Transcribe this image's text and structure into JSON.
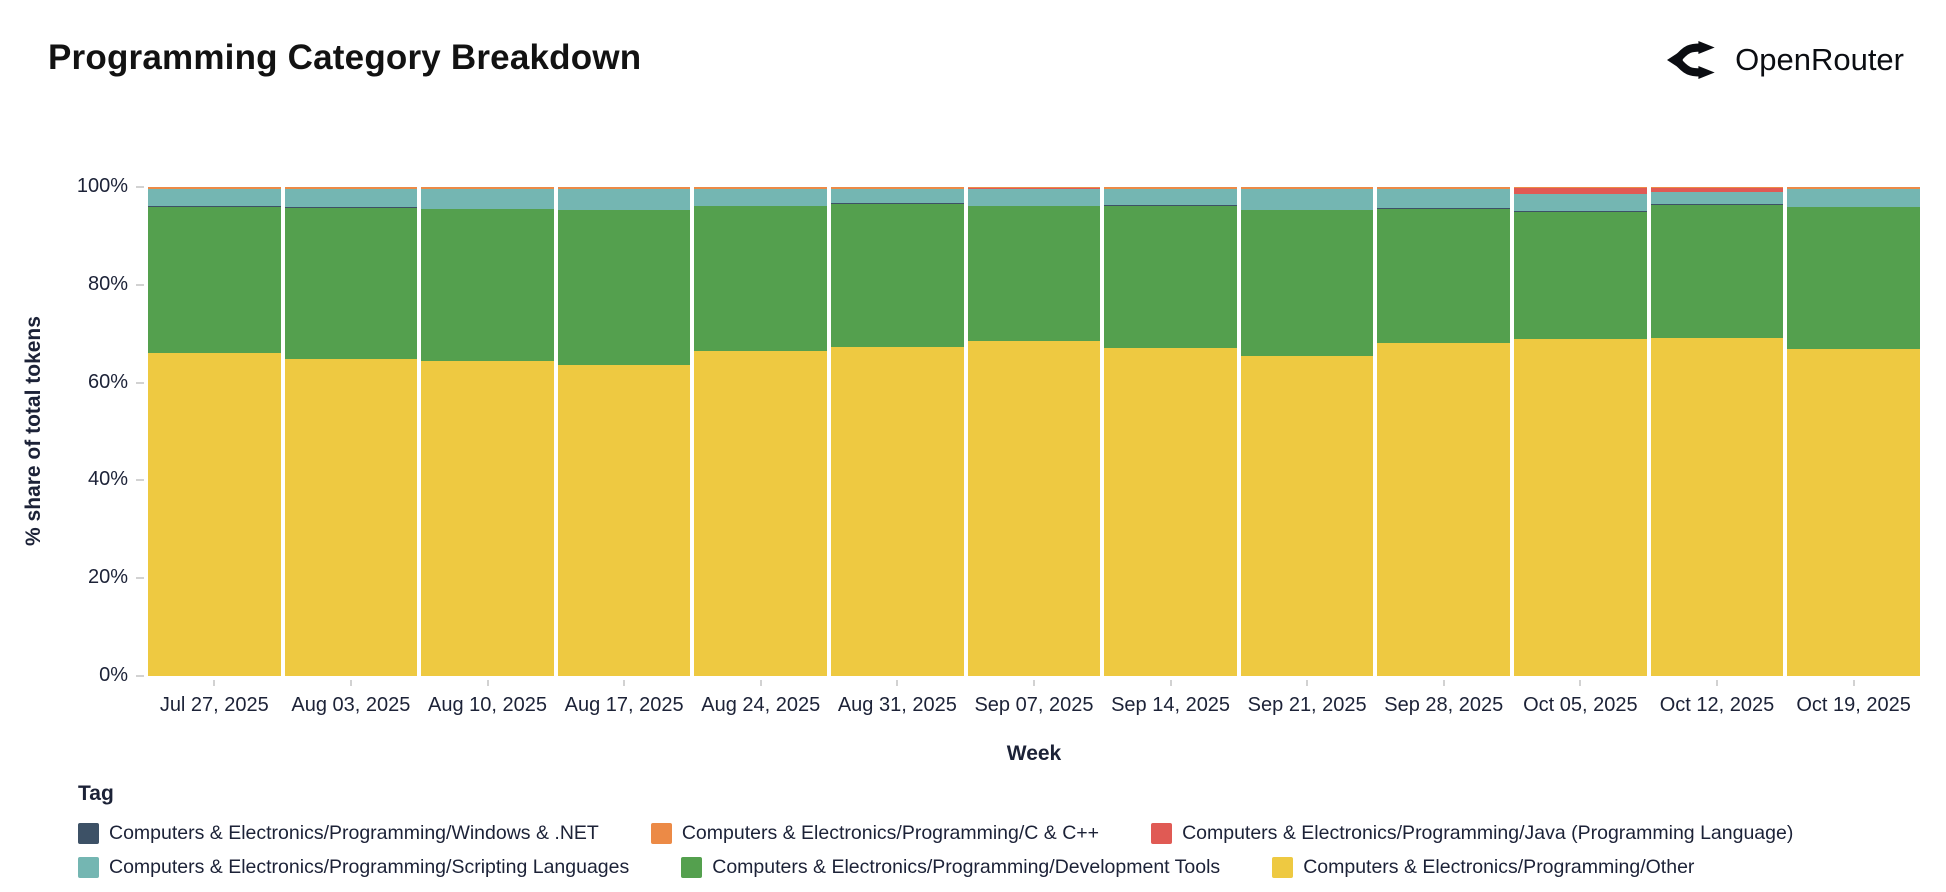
{
  "header": {
    "title": "Programming Category Breakdown",
    "brand": "OpenRouter"
  },
  "chart_data": {
    "type": "bar",
    "stacked": true,
    "unit": "percent",
    "title": "Programming Category Breakdown",
    "xlabel": "Week",
    "ylabel": "% share of total tokens",
    "ylim": [
      0,
      100
    ],
    "yticks": [
      "0%",
      "20%",
      "40%",
      "60%",
      "80%",
      "100%"
    ],
    "grid": false,
    "legend_title": "Tag",
    "legend_position": "bottom",
    "categories": [
      "Jul 27, 2025",
      "Aug 03, 2025",
      "Aug 10, 2025",
      "Aug 17, 2025",
      "Aug 24, 2025",
      "Aug 31, 2025",
      "Sep 07, 2025",
      "Sep 14, 2025",
      "Sep 21, 2025",
      "Sep 28, 2025",
      "Oct 05, 2025",
      "Oct 12, 2025",
      "Oct 19, 2025"
    ],
    "series": [
      {
        "name": "Computers & Electronics/Programming/Other",
        "key": "other",
        "color": "#eec941",
        "values": [
          66.1,
          64.8,
          64.5,
          63.6,
          66.5,
          67.3,
          68.6,
          67.0,
          65.4,
          68.0,
          68.9,
          69.1,
          66.8
        ]
      },
      {
        "name": "Computers & Electronics/Programming/Development Tools",
        "key": "development-tools",
        "color": "#54a04e",
        "values": [
          29.9,
          31.0,
          31.0,
          31.6,
          29.6,
          29.3,
          27.5,
          29.2,
          29.9,
          27.6,
          26.0,
          27.3,
          29.1
        ]
      },
      {
        "name": "Computers & Electronics/Programming/Windows & .NET",
        "key": "windows-dotnet",
        "color": "#3d5166",
        "pattern": "dotted",
        "values": [
          0.1,
          0.1,
          0.1,
          0.1,
          0.1,
          0.1,
          0.1,
          0.1,
          0.1,
          0.1,
          0.1,
          0.1,
          0.1
        ]
      },
      {
        "name": "Computers & Electronics/Programming/Scripting Languages",
        "key": "scripting-languages",
        "color": "#74b6b2",
        "values": [
          3.5,
          3.7,
          4.0,
          4.3,
          3.4,
          2.9,
          3.4,
          3.3,
          4.2,
          3.9,
          3.6,
          2.5,
          3.6
        ]
      },
      {
        "name": "Computers & Electronics/Programming/Java (Programming Language)",
        "key": "java",
        "color": "#e05a54",
        "values": [
          0.1,
          0.1,
          0.1,
          0.1,
          0.1,
          0.1,
          0.1,
          0.1,
          0.1,
          0.1,
          1.2,
          0.8,
          0.1
        ]
      },
      {
        "name": "Computers & Electronics/Programming/C & C++",
        "key": "c-cpp",
        "color": "#ec8a46",
        "values": [
          0.3,
          0.3,
          0.3,
          0.3,
          0.3,
          0.3,
          0.3,
          0.3,
          0.3,
          0.3,
          0.2,
          0.2,
          0.3
        ]
      }
    ],
    "legend_order": [
      2,
      5,
      4,
      3,
      1,
      0
    ],
    "legend_rows": [
      3,
      3
    ]
  },
  "colors": {
    "text": "#1c2237",
    "title": "#121212",
    "tick": "#d2d2d2",
    "background": "#ffffff"
  }
}
